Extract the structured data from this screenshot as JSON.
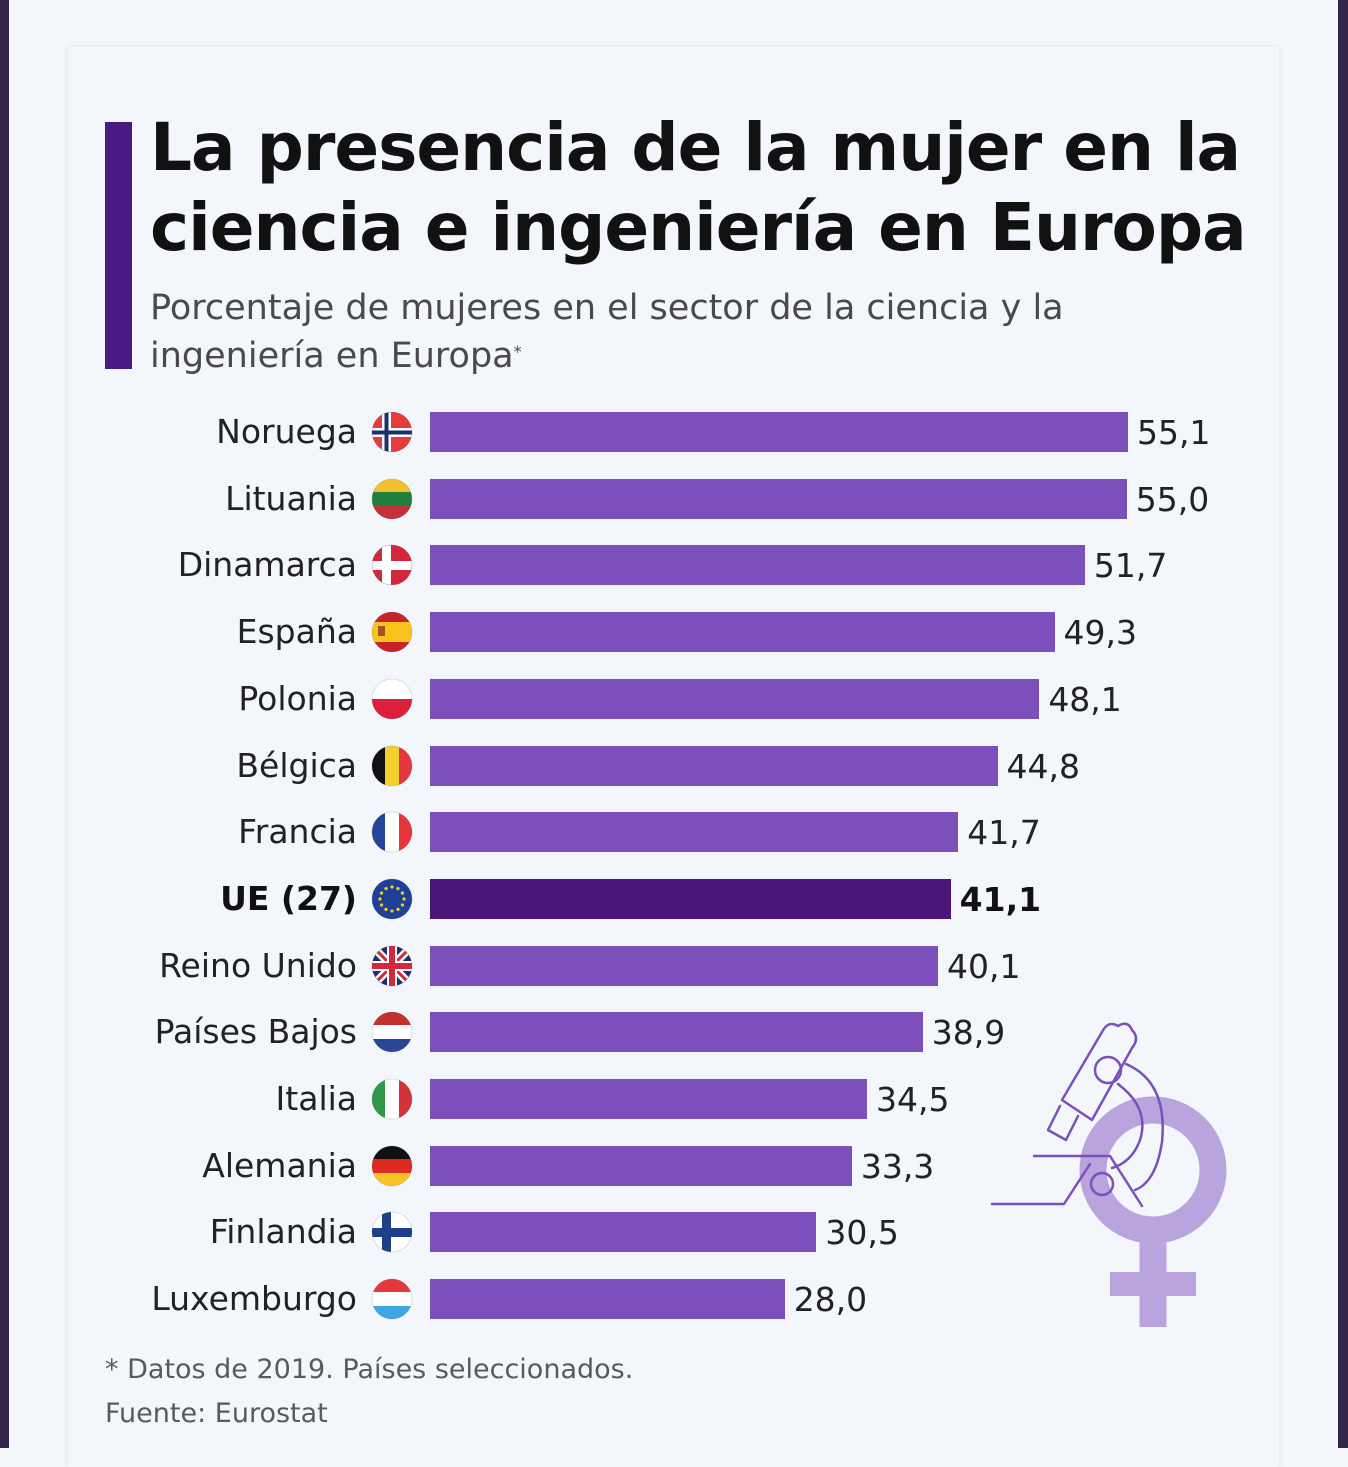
{
  "header": {
    "title": "La presencia de la mujer en la ciencia e ingeniería en Europa",
    "subtitle": "Porcentaje de mujeres en el sector de la ciencia y la ingeniería en Europa",
    "subtitle_marker": "*"
  },
  "footer": {
    "note": "* Datos de 2019. Países seleccionados.",
    "source": "Fuente: Eurostat"
  },
  "colors": {
    "bar": "#7b4fbc",
    "bar_highlight": "#4a1678",
    "accent": "#4a1a84",
    "illustration": "#b9a4de"
  },
  "illustration": {
    "icons": [
      "microscope-icon",
      "female-symbol-icon"
    ]
  },
  "chart_data": {
    "type": "bar",
    "orientation": "horizontal",
    "title": "La presencia de la mujer en la ciencia e ingeniería en Europa",
    "subtitle": "Porcentaje de mujeres en el sector de la ciencia y la ingeniería en Europa*",
    "xlabel": "",
    "ylabel": "",
    "xlim": [
      0,
      55.1
    ],
    "grid": false,
    "legend": "none",
    "unit": "%",
    "decimal_separator": ",",
    "categories": [
      "Noruega",
      "Lituania",
      "Dinamarca",
      "España",
      "Polonia",
      "Bélgica",
      "Francia",
      "UE (27)",
      "Reino Unido",
      "Países Bajos",
      "Italia",
      "Alemania",
      "Finlandia",
      "Luxemburgo"
    ],
    "values": [
      55.1,
      55.0,
      51.7,
      49.3,
      48.1,
      44.8,
      41.7,
      41.1,
      40.1,
      38.9,
      34.5,
      33.3,
      30.5,
      28.0
    ],
    "value_labels": [
      "55,1",
      "55,0",
      "51,7",
      "49,3",
      "48,1",
      "44,8",
      "41,7",
      "41,1",
      "40,1",
      "38,9",
      "34,5",
      "33,3",
      "30,5",
      "28,0"
    ],
    "flags": [
      "norway",
      "lithuania",
      "denmark",
      "spain",
      "poland",
      "belgium",
      "france",
      "eu",
      "uk",
      "netherlands",
      "italy",
      "germany",
      "finland",
      "luxembourg"
    ],
    "highlight": "UE (27)",
    "source": "Eurostat",
    "note": "Datos de 2019. Países seleccionados."
  }
}
